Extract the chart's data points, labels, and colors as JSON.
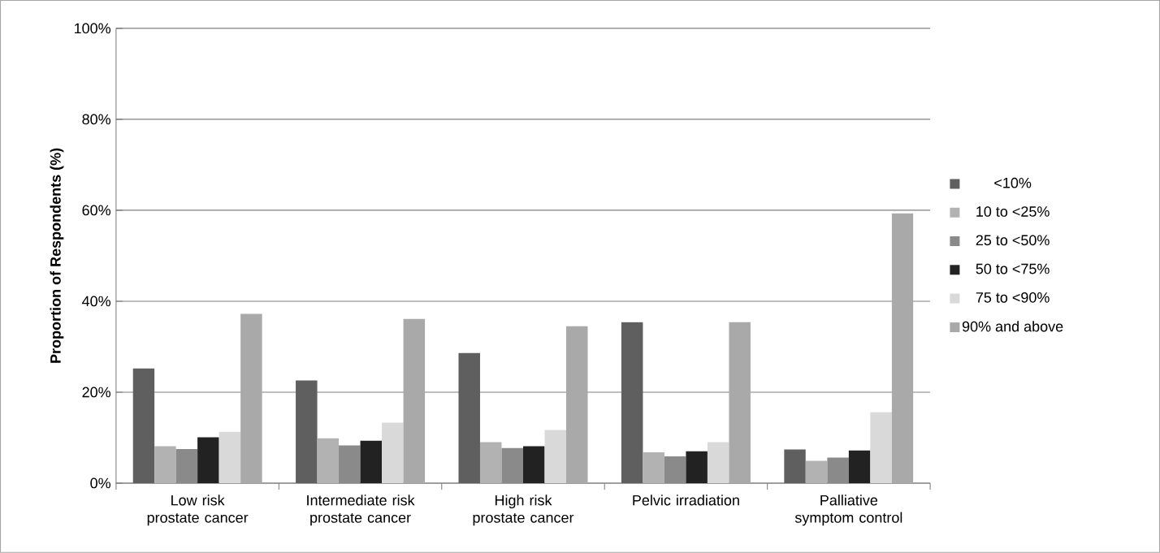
{
  "chart_data": {
    "type": "bar",
    "ylabel": "Proportion of Respondents (%)",
    "categories": [
      "Low risk prostate cancer",
      "Intermediate risk prostate cancer",
      "High risk prostate cancer",
      "Pelvic irradiation",
      "Palliative symptom control"
    ],
    "series": [
      {
        "name": "<10%",
        "color": "#5f5f5f",
        "values": [
          25.2,
          22.6,
          28.6,
          35.4,
          7.4
        ]
      },
      {
        "name": "10 to <25%",
        "color": "#b2b2b2",
        "values": [
          8.1,
          9.9,
          9.0,
          6.8,
          4.9
        ]
      },
      {
        "name": "25 to <50%",
        "color": "#8a8a8a",
        "values": [
          7.5,
          8.3,
          7.7,
          5.9,
          5.6
        ]
      },
      {
        "name": "50 to <75%",
        "color": "#222222",
        "values": [
          10.1,
          9.3,
          8.1,
          7.0,
          7.2
        ]
      },
      {
        "name": "75 to <90%",
        "color": "#d9d9d9",
        "values": [
          11.3,
          13.3,
          11.7,
          9.0,
          15.6
        ]
      },
      {
        "name": "90% and above",
        "color": "#a9a9a9",
        "values": [
          37.2,
          36.1,
          34.5,
          35.4,
          59.3
        ]
      }
    ],
    "ylim": [
      0,
      100
    ],
    "yticks": [
      {
        "value": 0,
        "label": "0%"
      },
      {
        "value": 20,
        "label": "20%"
      },
      {
        "value": 40,
        "label": "40%"
      },
      {
        "value": 60,
        "label": "60%"
      },
      {
        "value": 80,
        "label": "80%"
      },
      {
        "value": 100,
        "label": "100%"
      }
    ],
    "grid": "y",
    "legend": "right"
  }
}
